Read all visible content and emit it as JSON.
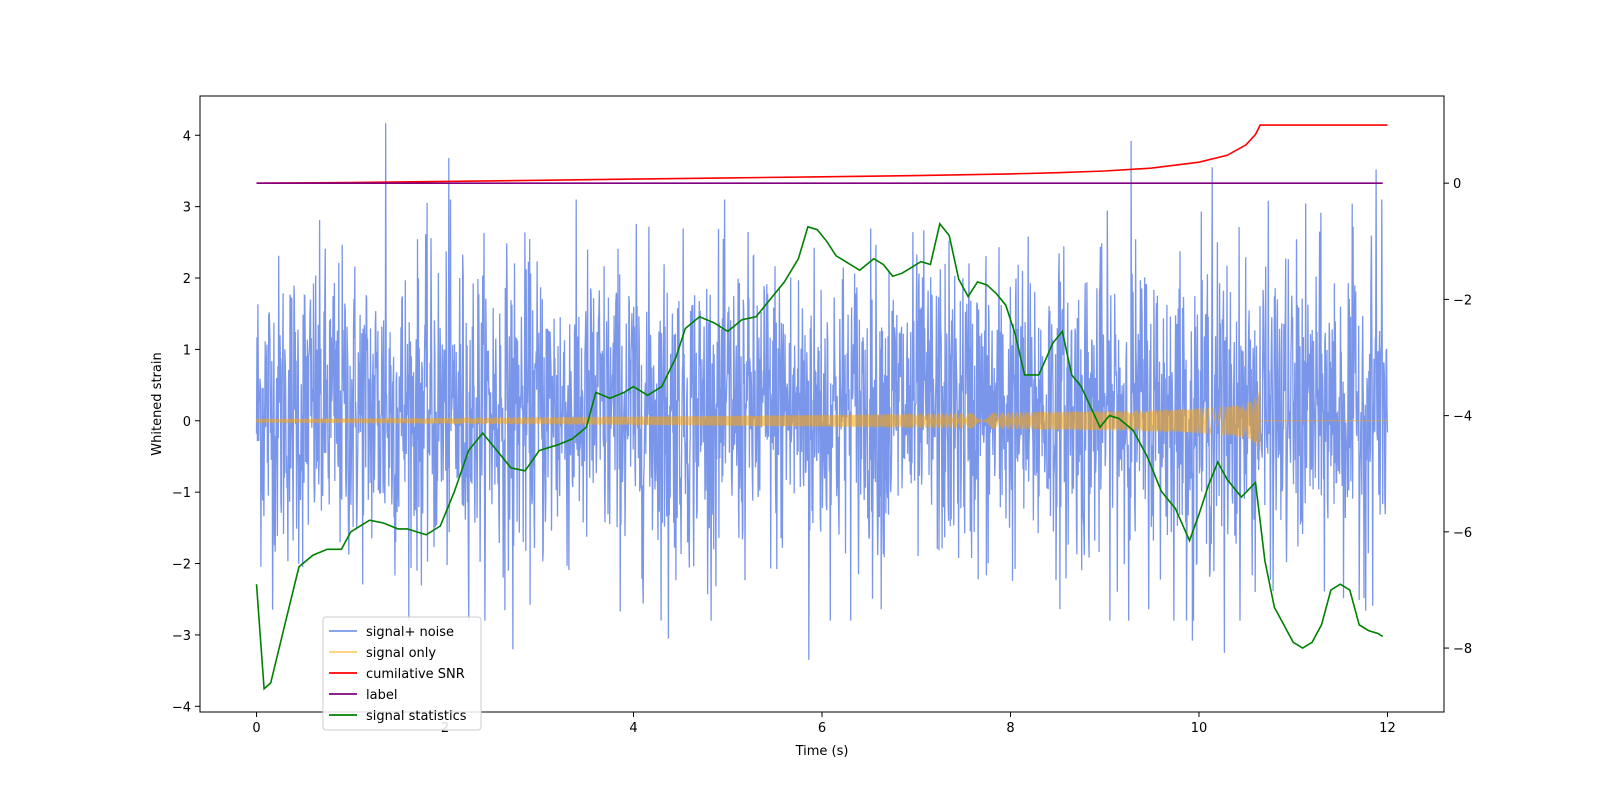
{
  "chart_data": {
    "type": "line",
    "xlabel": "Time (s)",
    "ylabel": "Whitened strain",
    "ylabel_right": "",
    "xlim": [
      -0.6,
      12.6
    ],
    "ylim_left": [
      -4.08,
      4.55
    ],
    "ylim_right": [
      -9.1,
      1.5
    ],
    "x_ticks": [
      0,
      2,
      4,
      6,
      8,
      10,
      12
    ],
    "y_ticks_left": [
      -4,
      -3,
      -2,
      -1,
      0,
      1,
      2,
      3,
      4
    ],
    "y_ticks_right": [
      -8,
      -6,
      -4,
      -2,
      0
    ],
    "legend_position": "lower-left",
    "grid": false,
    "series": [
      {
        "name": "signal+ noise",
        "axis": "left",
        "color": "#4169e1",
        "style": "dense noise band",
        "x_range": [
          0,
          12
        ],
        "typical_range": [
          -1.9,
          2.2
        ],
        "peaks": [
          [
            1.37,
            4.17
          ],
          [
            2.04,
            3.68
          ],
          [
            9.28,
            3.92
          ],
          [
            10.14,
            3.55
          ],
          [
            11.88,
            3.52
          ]
        ],
        "troughs": [
          [
            5.86,
            -3.35
          ],
          [
            10.27,
            -3.25
          ],
          [
            2.72,
            -3.2
          ],
          [
            9.93,
            -3.08
          ],
          [
            4.37,
            -3.05
          ]
        ]
      },
      {
        "name": "signal only",
        "axis": "left",
        "color": "#ffa500",
        "style": "chirp",
        "x_range": [
          0,
          12
        ],
        "merger_time": 10.65,
        "peak_amplitude": 0.68
      },
      {
        "name": "cumilative SNR",
        "axis": "right",
        "color": "#ff0000",
        "points": [
          [
            0,
            0
          ],
          [
            1,
            0.01
          ],
          [
            2,
            0.03
          ],
          [
            3,
            0.05
          ],
          [
            4,
            0.07
          ],
          [
            5,
            0.09
          ],
          [
            6,
            0.11
          ],
          [
            7,
            0.13
          ],
          [
            8,
            0.16
          ],
          [
            8.5,
            0.18
          ],
          [
            9,
            0.21
          ],
          [
            9.5,
            0.26
          ],
          [
            10,
            0.36
          ],
          [
            10.3,
            0.48
          ],
          [
            10.5,
            0.66
          ],
          [
            10.6,
            0.84
          ],
          [
            10.65,
            1.0
          ],
          [
            12,
            1.0
          ]
        ]
      },
      {
        "name": "label",
        "axis": "right",
        "color": "#800080",
        "points": [
          [
            0,
            0
          ],
          [
            11.95,
            0
          ]
        ]
      },
      {
        "name": "signal statistics",
        "axis": "right",
        "color": "#008000",
        "points": [
          [
            0,
            -6.9
          ],
          [
            0.08,
            -8.7
          ],
          [
            0.15,
            -8.6
          ],
          [
            0.3,
            -7.6
          ],
          [
            0.45,
            -6.6
          ],
          [
            0.6,
            -6.4
          ],
          [
            0.75,
            -6.3
          ],
          [
            0.9,
            -6.3
          ],
          [
            1.0,
            -6.0
          ],
          [
            1.2,
            -5.8
          ],
          [
            1.35,
            -5.85
          ],
          [
            1.5,
            -5.95
          ],
          [
            1.6,
            -5.95
          ],
          [
            1.8,
            -6.05
          ],
          [
            1.95,
            -5.9
          ],
          [
            2.1,
            -5.3
          ],
          [
            2.25,
            -4.6
          ],
          [
            2.4,
            -4.3
          ],
          [
            2.55,
            -4.6
          ],
          [
            2.7,
            -4.9
          ],
          [
            2.85,
            -4.95
          ],
          [
            3.0,
            -4.6
          ],
          [
            3.2,
            -4.5
          ],
          [
            3.35,
            -4.4
          ],
          [
            3.5,
            -4.2
          ],
          [
            3.6,
            -3.6
          ],
          [
            3.75,
            -3.7
          ],
          [
            3.9,
            -3.6
          ],
          [
            4.0,
            -3.5
          ],
          [
            4.15,
            -3.65
          ],
          [
            4.3,
            -3.5
          ],
          [
            4.45,
            -3.0
          ],
          [
            4.55,
            -2.5
          ],
          [
            4.7,
            -2.3
          ],
          [
            4.85,
            -2.4
          ],
          [
            5.0,
            -2.55
          ],
          [
            5.15,
            -2.35
          ],
          [
            5.3,
            -2.3
          ],
          [
            5.45,
            -2.0
          ],
          [
            5.6,
            -1.7
          ],
          [
            5.75,
            -1.3
          ],
          [
            5.85,
            -0.75
          ],
          [
            5.95,
            -0.8
          ],
          [
            6.05,
            -1.0
          ],
          [
            6.15,
            -1.25
          ],
          [
            6.25,
            -1.35
          ],
          [
            6.4,
            -1.5
          ],
          [
            6.55,
            -1.3
          ],
          [
            6.65,
            -1.4
          ],
          [
            6.75,
            -1.6
          ],
          [
            6.85,
            -1.55
          ],
          [
            6.95,
            -1.45
          ],
          [
            7.05,
            -1.35
          ],
          [
            7.15,
            -1.4
          ],
          [
            7.25,
            -0.7
          ],
          [
            7.35,
            -0.9
          ],
          [
            7.45,
            -1.65
          ],
          [
            7.55,
            -1.95
          ],
          [
            7.65,
            -1.7
          ],
          [
            7.75,
            -1.75
          ],
          [
            7.85,
            -1.9
          ],
          [
            7.95,
            -2.1
          ],
          [
            8.05,
            -2.6
          ],
          [
            8.15,
            -3.3
          ],
          [
            8.3,
            -3.3
          ],
          [
            8.45,
            -2.75
          ],
          [
            8.55,
            -2.55
          ],
          [
            8.65,
            -3.3
          ],
          [
            8.75,
            -3.5
          ],
          [
            8.85,
            -3.85
          ],
          [
            8.95,
            -4.2
          ],
          [
            9.05,
            -4.0
          ],
          [
            9.15,
            -4.05
          ],
          [
            9.3,
            -4.25
          ],
          [
            9.45,
            -4.7
          ],
          [
            9.6,
            -5.3
          ],
          [
            9.75,
            -5.6
          ],
          [
            9.9,
            -6.15
          ],
          [
            10.0,
            -5.7
          ],
          [
            10.1,
            -5.2
          ],
          [
            10.2,
            -4.8
          ],
          [
            10.3,
            -5.1
          ],
          [
            10.45,
            -5.4
          ],
          [
            10.6,
            -5.15
          ],
          [
            10.7,
            -6.5
          ],
          [
            10.8,
            -7.3
          ],
          [
            10.9,
            -7.6
          ],
          [
            11.0,
            -7.9
          ],
          [
            11.1,
            -8.0
          ],
          [
            11.2,
            -7.9
          ],
          [
            11.3,
            -7.6
          ],
          [
            11.4,
            -7.0
          ],
          [
            11.5,
            -6.9
          ],
          [
            11.6,
            -7.0
          ],
          [
            11.7,
            -7.6
          ],
          [
            11.8,
            -7.7
          ],
          [
            11.9,
            -7.75
          ],
          [
            11.95,
            -7.8
          ]
        ]
      }
    ]
  }
}
